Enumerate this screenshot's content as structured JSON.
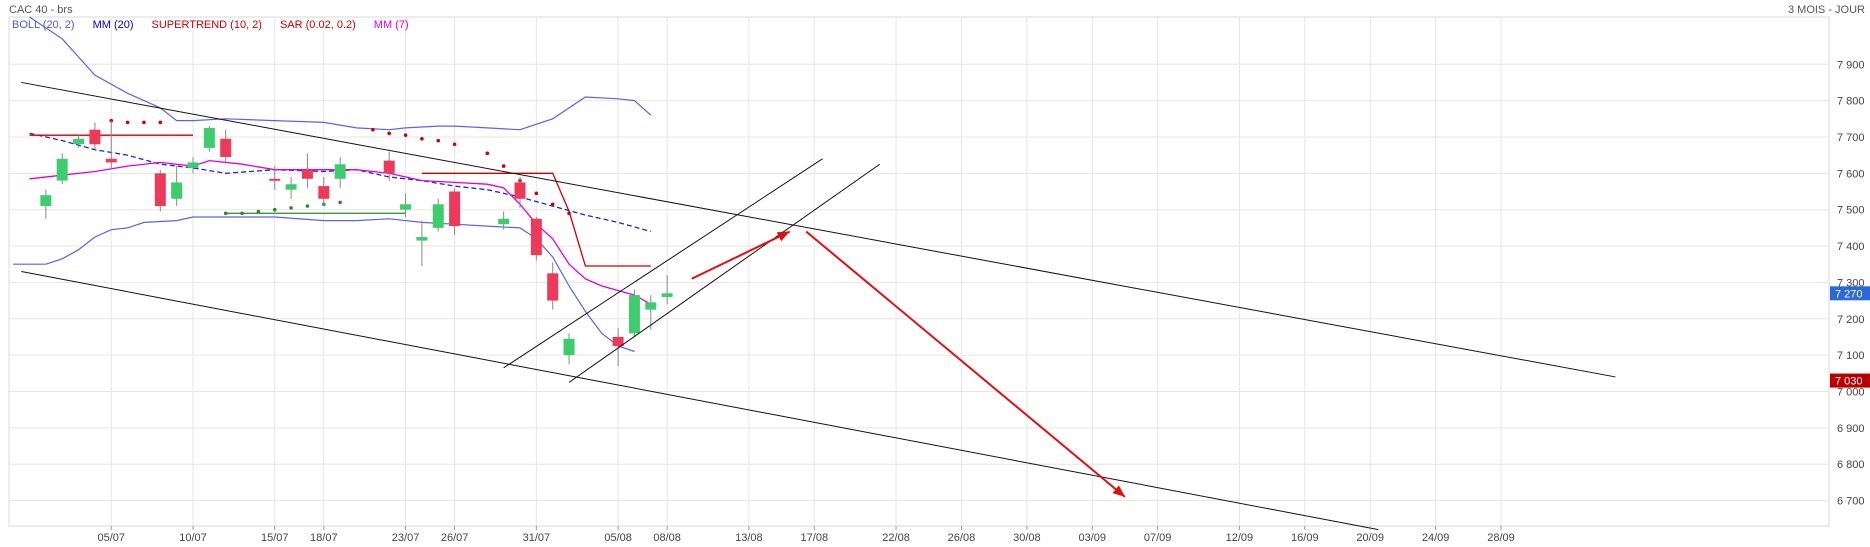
{
  "header": {
    "title": "CAC 40 - brs",
    "period": "3 MOIS - JOUR"
  },
  "legend": [
    {
      "label": "BOLL (20, 2)",
      "color": "#4a5ae0"
    },
    {
      "label": "MM (20)",
      "color": "#0000cc"
    },
    {
      "label": "SUPERTREND (10, 2)",
      "color": "#cc0000"
    },
    {
      "label": "SAR (0.02, 0.2)",
      "color": "#cc0000"
    },
    {
      "label": "MM (7)",
      "color": "#e000e0"
    }
  ],
  "badges": [
    {
      "label": "7 270",
      "value": 7270,
      "color": "#2a6ad8"
    },
    {
      "label": "7 030",
      "value": 7030,
      "color": "#b80000"
    }
  ],
  "chart_data": {
    "type": "candlestick",
    "ylim": [
      6630,
      8030
    ],
    "y_ticks": [
      {
        "label": "7 900",
        "value": 7900
      },
      {
        "label": "7 800",
        "value": 7800
      },
      {
        "label": "7 700",
        "value": 7700
      },
      {
        "label": "7 600",
        "value": 7600
      },
      {
        "label": "7 500",
        "value": 7500
      },
      {
        "label": "7 400",
        "value": 7400
      },
      {
        "label": "7 300",
        "value": 7300
      },
      {
        "label": "7 200",
        "value": 7200
      },
      {
        "label": "7 100",
        "value": 7100
      },
      {
        "label": "7 000",
        "value": 7000
      },
      {
        "label": "6 900",
        "value": 6900
      },
      {
        "label": "6 800",
        "value": 6800
      },
      {
        "label": "6 700",
        "value": 6700
      }
    ],
    "x_ticks": [
      {
        "label": "05/07",
        "day": 5
      },
      {
        "label": "10/07",
        "day": 10
      },
      {
        "label": "15/07",
        "day": 15
      },
      {
        "label": "18/07",
        "day": 18
      },
      {
        "label": "23/07",
        "day": 23
      },
      {
        "label": "26/07",
        "day": 26
      },
      {
        "label": "31/07",
        "day": 31
      },
      {
        "label": "05/08",
        "day": 36
      },
      {
        "label": "08/08",
        "day": 39
      },
      {
        "label": "13/08",
        "day": 44
      },
      {
        "label": "17/08",
        "day": 48
      },
      {
        "label": "22/08",
        "day": 53
      },
      {
        "label": "26/08",
        "day": 57
      },
      {
        "label": "30/08",
        "day": 61
      },
      {
        "label": "03/09",
        "day": 65
      },
      {
        "label": "07/09",
        "day": 69
      },
      {
        "label": "12/09",
        "day": 74
      },
      {
        "label": "16/09",
        "day": 78
      },
      {
        "label": "20/09",
        "day": 82
      },
      {
        "label": "24/09",
        "day": 86
      },
      {
        "label": "28/09",
        "day": 90
      }
    ],
    "candles": [
      {
        "day": 1,
        "open": 7510,
        "close": 7540,
        "high": 7555,
        "low": 7475
      },
      {
        "day": 2,
        "open": 7580,
        "close": 7640,
        "high": 7655,
        "low": 7570
      },
      {
        "day": 3,
        "open": 7680,
        "close": 7695,
        "high": 7705,
        "low": 7670
      },
      {
        "day": 4,
        "open": 7720,
        "close": 7680,
        "high": 7740,
        "low": 7665
      },
      {
        "day": 5,
        "open": 7640,
        "close": 7630,
        "high": 7745,
        "low": 7610
      },
      {
        "day": 8,
        "open": 7600,
        "close": 7510,
        "high": 7610,
        "low": 7495
      },
      {
        "day": 9,
        "open": 7530,
        "close": 7575,
        "high": 7620,
        "low": 7510
      },
      {
        "day": 10,
        "open": 7615,
        "close": 7630,
        "high": 7645,
        "low": 7600
      },
      {
        "day": 11,
        "open": 7670,
        "close": 7725,
        "high": 7730,
        "low": 7660
      },
      {
        "day": 12,
        "open": 7695,
        "close": 7645,
        "high": 7720,
        "low": 7630
      },
      {
        "day": 15,
        "open": 7585,
        "close": 7580,
        "high": 7620,
        "low": 7555
      },
      {
        "day": 16,
        "open": 7555,
        "close": 7570,
        "high": 7590,
        "low": 7530
      },
      {
        "day": 17,
        "open": 7610,
        "close": 7585,
        "high": 7655,
        "low": 7560
      },
      {
        "day": 18,
        "open": 7565,
        "close": 7530,
        "high": 7590,
        "low": 7510
      },
      {
        "day": 19,
        "open": 7585,
        "close": 7625,
        "high": 7645,
        "low": 7560
      },
      {
        "day": 22,
        "open": 7635,
        "close": 7600,
        "high": 7660,
        "low": 7580
      },
      {
        "day": 23,
        "open": 7500,
        "close": 7515,
        "high": 7545,
        "low": 7480
      },
      {
        "day": 24,
        "open": 7415,
        "close": 7425,
        "high": 7470,
        "low": 7345
      },
      {
        "day": 25,
        "open": 7450,
        "close": 7515,
        "high": 7530,
        "low": 7440
      },
      {
        "day": 26,
        "open": 7550,
        "close": 7455,
        "high": 7560,
        "low": 7430
      },
      {
        "day": 29,
        "open": 7460,
        "close": 7475,
        "high": 7495,
        "low": 7445
      },
      {
        "day": 30,
        "open": 7575,
        "close": 7530,
        "high": 7590,
        "low": 7505
      },
      {
        "day": 31,
        "open": 7475,
        "close": 7375,
        "high": 7480,
        "low": 7360
      },
      {
        "day": 32,
        "open": 7325,
        "close": 7250,
        "high": 7355,
        "low": 7225
      },
      {
        "day": 33,
        "open": 7100,
        "close": 7145,
        "high": 7160,
        "low": 7075
      },
      {
        "day": 36,
        "open": 7150,
        "close": 7125,
        "high": 7175,
        "low": 7070
      },
      {
        "day": 37,
        "open": 7160,
        "close": 7265,
        "high": 7280,
        "low": 7150
      },
      {
        "day": 38,
        "open": 7225,
        "close": 7245,
        "high": 7265,
        "low": 7170
      },
      {
        "day": 39,
        "open": 7260,
        "close": 7270,
        "high": 7320,
        "low": 7240
      }
    ],
    "bollinger_upper": [
      [
        0,
        8030
      ],
      [
        2,
        7970
      ],
      [
        4,
        7870
      ],
      [
        6,
        7820
      ],
      [
        7,
        7800
      ],
      [
        8,
        7780
      ],
      [
        9,
        7745
      ],
      [
        10,
        7745
      ],
      [
        12,
        7750
      ],
      [
        15,
        7745
      ],
      [
        18,
        7740
      ],
      [
        20,
        7725
      ],
      [
        22,
        7720
      ],
      [
        23,
        7725
      ],
      [
        25,
        7730
      ],
      [
        26,
        7730
      ],
      [
        28,
        7725
      ],
      [
        30,
        7720
      ],
      [
        32,
        7750
      ],
      [
        34,
        7810
      ],
      [
        36,
        7805
      ],
      [
        37,
        7800
      ],
      [
        38,
        7760
      ]
    ],
    "bollinger_lower": [
      [
        -1,
        7350
      ],
      [
        1,
        7350
      ],
      [
        2,
        7365
      ],
      [
        3,
        7390
      ],
      [
        4,
        7425
      ],
      [
        5,
        7445
      ],
      [
        6,
        7450
      ],
      [
        7,
        7465
      ],
      [
        9,
        7470
      ],
      [
        10,
        7480
      ],
      [
        12,
        7480
      ],
      [
        15,
        7480
      ],
      [
        18,
        7470
      ],
      [
        20,
        7470
      ],
      [
        22,
        7475
      ],
      [
        24,
        7465
      ],
      [
        26,
        7460
      ],
      [
        28,
        7455
      ],
      [
        30,
        7450
      ],
      [
        31,
        7420
      ],
      [
        32,
        7370
      ],
      [
        33,
        7290
      ],
      [
        34,
        7220
      ],
      [
        35,
        7160
      ],
      [
        36,
        7125
      ],
      [
        37,
        7110
      ]
    ],
    "mm20": [
      [
        0,
        7710
      ],
      [
        2,
        7690
      ],
      [
        4,
        7665
      ],
      [
        6,
        7650
      ],
      [
        8,
        7625
      ],
      [
        10,
        7615
      ],
      [
        12,
        7600
      ],
      [
        15,
        7610
      ],
      [
        18,
        7605
      ],
      [
        20,
        7610
      ],
      [
        22,
        7590
      ],
      [
        24,
        7580
      ],
      [
        26,
        7565
      ],
      [
        28,
        7555
      ],
      [
        30,
        7535
      ],
      [
        32,
        7510
      ],
      [
        34,
        7485
      ],
      [
        36,
        7465
      ],
      [
        38,
        7440
      ]
    ],
    "mm7": [
      [
        0,
        7585
      ],
      [
        2,
        7595
      ],
      [
        4,
        7605
      ],
      [
        6,
        7620
      ],
      [
        8,
        7630
      ],
      [
        10,
        7620
      ],
      [
        11,
        7635
      ],
      [
        13,
        7625
      ],
      [
        15,
        7610
      ],
      [
        18,
        7610
      ],
      [
        20,
        7610
      ],
      [
        22,
        7600
      ],
      [
        24,
        7580
      ],
      [
        26,
        7575
      ],
      [
        28,
        7570
      ],
      [
        29,
        7560
      ],
      [
        30,
        7515
      ],
      [
        31,
        7460
      ],
      [
        32,
        7420
      ],
      [
        33,
        7350
      ],
      [
        34,
        7310
      ],
      [
        35,
        7290
      ],
      [
        37,
        7265
      ],
      [
        38,
        7240
      ]
    ],
    "supertrend": [
      {
        "from": [
          0,
          7705
        ],
        "to": [
          10,
          7705
        ]
      },
      {
        "from": [
          12,
          7490
        ],
        "to": [
          23,
          7490
        ]
      },
      {
        "from": [
          24,
          7600
        ],
        "to": [
          32,
          7600
        ],
        "then": [
          [
            33,
            7495
          ],
          [
            34,
            7345
          ],
          [
            38,
            7345
          ]
        ]
      }
    ],
    "sar": [
      [
        5,
        7745
      ],
      [
        6,
        7740
      ],
      [
        7,
        7740
      ],
      [
        8,
        7740
      ],
      [
        12,
        7490
      ],
      [
        13,
        7490
      ],
      [
        14,
        7495
      ],
      [
        15,
        7500
      ],
      [
        16,
        7505
      ],
      [
        17,
        7510
      ],
      [
        18,
        7515
      ],
      [
        19,
        7520
      ],
      [
        21,
        7720
      ],
      [
        22,
        7710
      ],
      [
        23,
        7705
      ],
      [
        24,
        7695
      ],
      [
        25,
        7690
      ],
      [
        26,
        7680
      ],
      [
        28,
        7655
      ],
      [
        29,
        7620
      ],
      [
        30,
        7580
      ],
      [
        31,
        7545
      ],
      [
        32,
        7515
      ],
      [
        33,
        7490
      ]
    ],
    "trendlines": [
      {
        "from": [
          -0.5,
          7850
        ],
        "to": [
          97,
          7040
        ]
      },
      {
        "from": [
          -0.5,
          7330
        ],
        "to": [
          82.5,
          6620
        ]
      },
      {
        "from": [
          29,
          7065
        ],
        "to": [
          48.5,
          7640
        ]
      },
      {
        "from": [
          33,
          7025
        ],
        "to": [
          52,
          7625
        ]
      }
    ],
    "arrows": [
      {
        "from": [
          40.5,
          7310
        ],
        "to": [
          46.5,
          7440
        ]
      },
      {
        "from": [
          47.5,
          7440
        ],
        "to": [
          67,
          6710
        ]
      }
    ]
  }
}
